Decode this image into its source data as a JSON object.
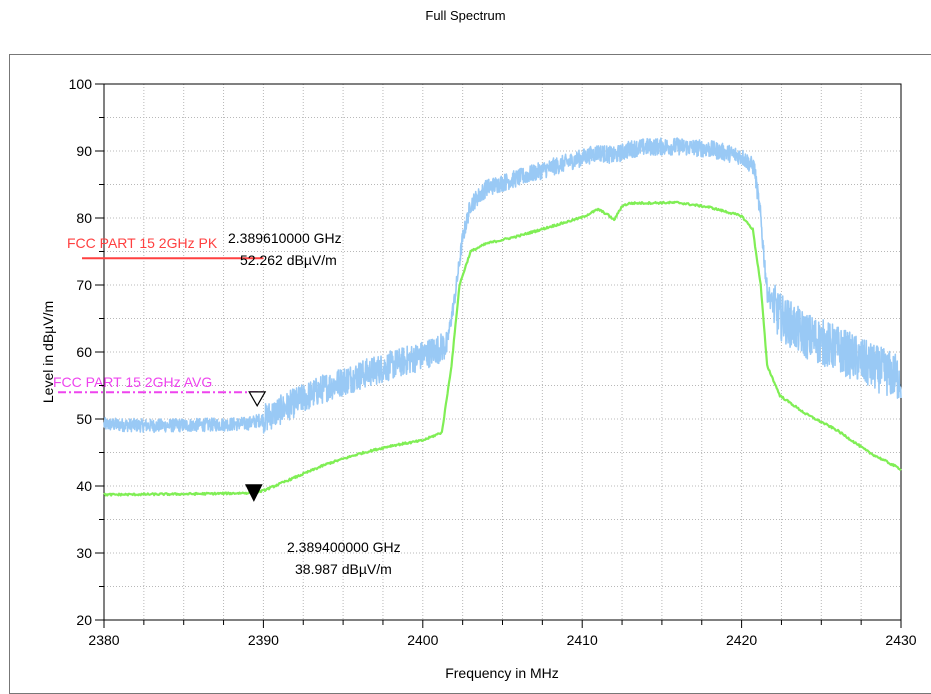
{
  "chart_data": {
    "type": "line",
    "title": "Full Spectrum",
    "xlabel": "Frequency in MHz",
    "ylabel": "Level in dBµV/m",
    "xlim": [
      2380,
      2430
    ],
    "ylim": [
      20,
      100
    ],
    "xticks": [
      "2380",
      "2390",
      "2400",
      "2410",
      "2420",
      "2430"
    ],
    "yticks": [
      "20",
      "30",
      "40",
      "50",
      "60",
      "70",
      "80",
      "90",
      "100"
    ],
    "grid": true,
    "colors": {
      "peak_trace": "#99c9f5",
      "avg_trace": "#80ee55",
      "pk_limit": "#ff4040",
      "avg_limit": "#ee44ee"
    },
    "series": [
      {
        "role": "peak",
        "x": [
          2380,
          2383,
          2386,
          2389,
          2390,
          2392,
          2394,
          2396,
          2398,
          2400,
          2401.5,
          2402,
          2402.5,
          2403,
          2404,
          2406,
          2408,
          2410,
          2411,
          2412,
          2413,
          2414,
          2416,
          2418,
          2420,
          2420.8,
          2421.2,
          2421.6,
          2422.3,
          2424,
          2426,
          2428,
          2430
        ],
        "y": [
          49.2,
          49.0,
          49.1,
          49.3,
          50.0,
          52.5,
          54.8,
          56.5,
          58.0,
          59.5,
          61.0,
          68.0,
          77.0,
          82.0,
          84.5,
          86.0,
          87.5,
          89.0,
          89.8,
          89.3,
          90.3,
          90.6,
          90.7,
          90.3,
          89.2,
          87.5,
          80.0,
          69.0,
          65.5,
          62.5,
          60.5,
          58.0,
          56.0
        ]
      },
      {
        "role": "average",
        "x": [
          2380,
          2385,
          2388,
          2389.4,
          2390,
          2392,
          2394,
          2396,
          2398,
          2400,
          2401.2,
          2401.8,
          2402.3,
          2403,
          2404,
          2406,
          2408,
          2410,
          2411,
          2411.6,
          2412,
          2412.5,
          2413,
          2416,
          2418,
          2420,
          2420.7,
          2421.2,
          2421.6,
          2422.4,
          2424,
          2426,
          2428,
          2430
        ],
        "y": [
          38.7,
          38.8,
          38.9,
          39.0,
          39.3,
          41.3,
          43.3,
          44.8,
          46.0,
          46.8,
          48.0,
          58.0,
          70.0,
          75.0,
          76.2,
          77.3,
          78.7,
          80.1,
          81.3,
          80.5,
          79.7,
          81.8,
          82.2,
          82.3,
          81.6,
          80.3,
          78.3,
          70.0,
          58.0,
          53.5,
          50.8,
          48.3,
          45.0,
          42.5
        ]
      }
    ],
    "limit_lines": [
      {
        "label": "FCC PART 15 2GHz PK",
        "value": 74,
        "x_range": [
          2380,
          2390
        ]
      },
      {
        "label": "FCC PART 15 2GHz AVG",
        "value": 54,
        "x_range": [
          2380,
          2390
        ]
      }
    ],
    "markers": [
      {
        "freq": 2389.61,
        "level": 52.262,
        "style": "open",
        "freq_text": "2.389610000 GHz",
        "level_text": "52.262 dBµV/m"
      },
      {
        "freq": 2389.4,
        "level": 38.987,
        "style": "filled",
        "freq_text": "2.389400000 GHz",
        "level_text": "38.987 dBµV/m"
      }
    ]
  }
}
